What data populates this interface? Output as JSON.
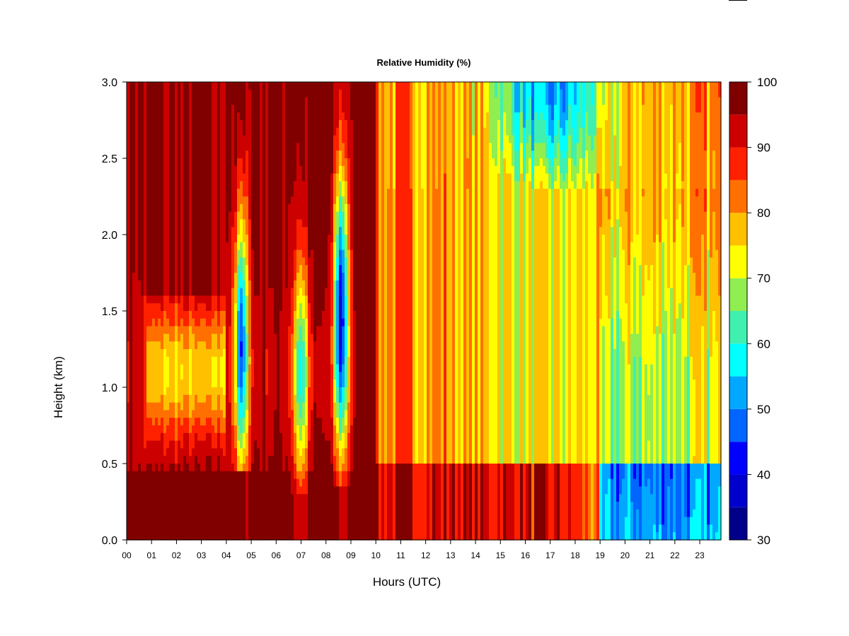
{
  "chart_data": {
    "type": "heatmap",
    "title": "Relative Humidity (%)",
    "xlabel": "Hours (UTC)",
    "ylabel": "Height (km)",
    "xlim": [
      0,
      23.85
    ],
    "ylim": [
      0.0,
      3.0
    ],
    "x_ticks": [
      "00",
      "01",
      "02",
      "03",
      "04",
      "05",
      "06",
      "07",
      "08",
      "09",
      "10",
      "11",
      "12",
      "13",
      "14",
      "15",
      "16",
      "17",
      "18",
      "19",
      "20",
      "21",
      "22",
      "23"
    ],
    "y_ticks": [
      "0.0",
      "0.5",
      "1.0",
      "1.5",
      "2.0",
      "2.5",
      "3.0"
    ],
    "colorbar": {
      "min": 30,
      "max": 100,
      "step": 5,
      "labels": [
        "30",
        "40",
        "50",
        "60",
        "70",
        "80",
        "90",
        "100"
      ],
      "colors": [
        "#00008B",
        "#0000CD",
        "#0000FF",
        "#0066FF",
        "#00A8FF",
        "#00FFFF",
        "#40F0B0",
        "#90EE50",
        "#FFFF00",
        "#FFC000",
        "#FF7000",
        "#FF2000",
        "#CC0000",
        "#800000"
      ]
    },
    "grid": false,
    "legend": "colorbar-right"
  }
}
